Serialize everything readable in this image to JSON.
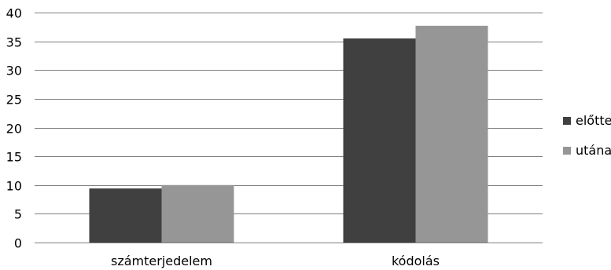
{
  "chart_data": {
    "type": "bar",
    "categories": [
      "számterjedelem",
      "kódolás"
    ],
    "series": [
      {
        "name": "előtte",
        "values": [
          9.4,
          35.5
        ],
        "color": "#404040"
      },
      {
        "name": "utána",
        "values": [
          10.0,
          37.7
        ],
        "color": "#969696"
      }
    ],
    "title": "",
    "xlabel": "",
    "ylabel": "",
    "ylim": [
      0,
      40
    ],
    "yticks": [
      0,
      5,
      10,
      15,
      20,
      25,
      30,
      35,
      40
    ],
    "grid": true,
    "legend_position": "right"
  }
}
